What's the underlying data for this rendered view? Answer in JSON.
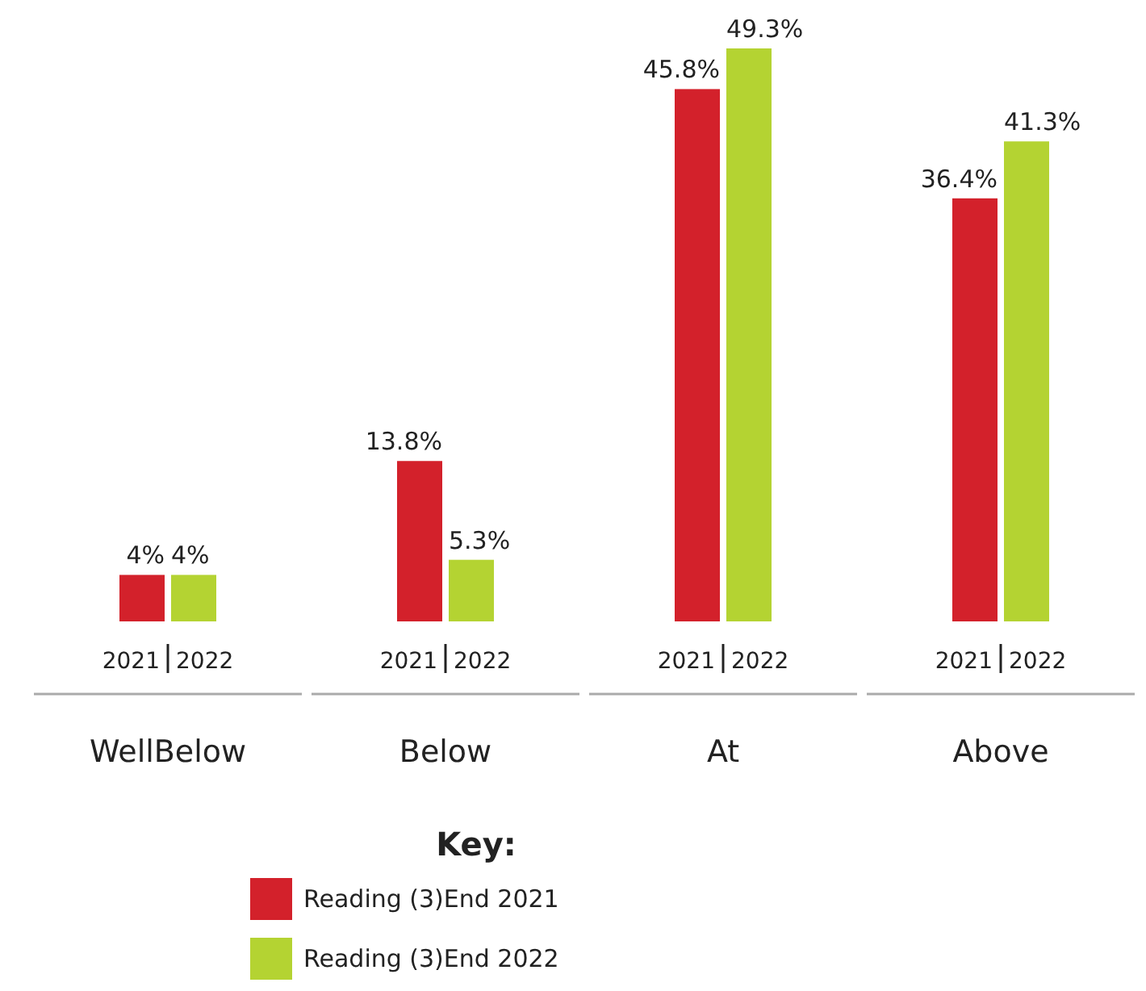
{
  "chart_data": {
    "type": "bar",
    "categories": [
      "WellBelow",
      "Below",
      "At",
      "Above"
    ],
    "series": [
      {
        "name": "Reading (3)End 2021",
        "color": "#d3212b",
        "values": [
          4,
          13.8,
          45.8,
          36.4
        ],
        "value_labels": [
          "4%",
          "13.8%",
          "45.8%",
          "36.4%"
        ]
      },
      {
        "name": "Reading (3)End 2022",
        "color": "#b4d332",
        "values": [
          4,
          5.3,
          49.3,
          41.3
        ],
        "value_labels": [
          "4%",
          "5.3%",
          "49.3%",
          "41.3%"
        ]
      }
    ],
    "legend": "bottom",
    "legend_title": "Key:",
    "annotations": [
      "2021",
      "2022",
      "2021",
      "2022",
      "2021",
      "2022",
      "2021",
      "2022"
    ]
  }
}
